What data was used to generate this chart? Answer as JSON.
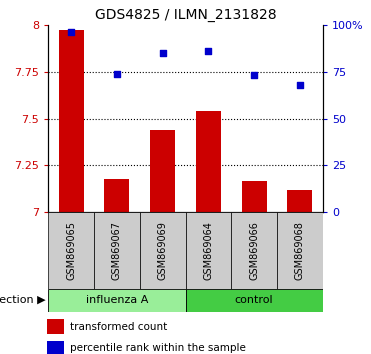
{
  "title": "GDS4825 / ILMN_2131828",
  "samples": [
    "GSM869065",
    "GSM869067",
    "GSM869069",
    "GSM869064",
    "GSM869066",
    "GSM869068"
  ],
  "group_labels": [
    "influenza A",
    "control"
  ],
  "bar_values": [
    7.97,
    7.18,
    7.44,
    7.54,
    7.17,
    7.12
  ],
  "dot_values": [
    96,
    74,
    85,
    86,
    73,
    68
  ],
  "bar_color": "#cc0000",
  "dot_color": "#0000cc",
  "ylim_left": [
    7.0,
    8.0
  ],
  "ylim_right": [
    0,
    100
  ],
  "yticks_left": [
    7.0,
    7.25,
    7.5,
    7.75,
    8.0
  ],
  "yticks_right": [
    0,
    25,
    50,
    75,
    100
  ],
  "ytick_labels_left": [
    "7",
    "7.25",
    "7.5",
    "7.75",
    "8"
  ],
  "ytick_labels_right": [
    "0",
    "25",
    "50",
    "75",
    "100%"
  ],
  "grid_lines": [
    7.25,
    7.5,
    7.75
  ],
  "sample_box_color": "#cccccc",
  "group_color_influenza": "#99ee99",
  "group_color_control": "#44cc44",
  "infection_label": "infection",
  "legend_bar_label": "transformed count",
  "legend_dot_label": "percentile rank within the sample",
  "bar_bottom": 7.0,
  "group_split": 3,
  "figsize": [
    3.71,
    3.54
  ],
  "dpi": 100
}
